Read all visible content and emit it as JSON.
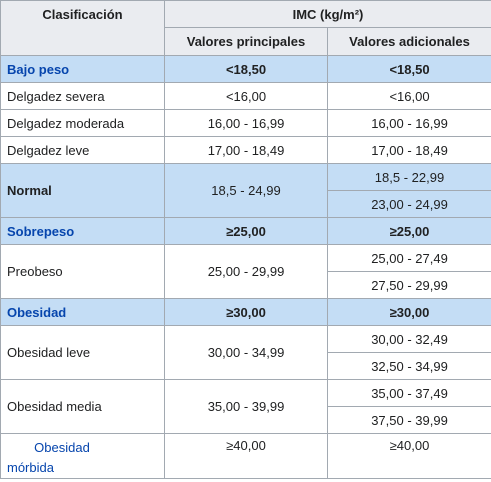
{
  "header": {
    "classification": "Clasificación",
    "bmi": "IMC (kg/m²)",
    "principal": "Valores principales",
    "additional": "Valores adicionales"
  },
  "rows": {
    "underweight": {
      "label": "Bajo peso",
      "principal": "<18,50",
      "additional": "<18,50"
    },
    "severe_thinness": {
      "label": "Delgadez severa",
      "principal": "<16,00",
      "additional": "<16,00"
    },
    "moderate_thinness": {
      "label": "Delgadez moderada",
      "principal": "16,00 - 16,99",
      "additional": "16,00 - 16,99"
    },
    "mild_thinness": {
      "label": "Delgadez leve",
      "principal": "17,00 - 18,49",
      "additional": "17,00 - 18,49"
    },
    "normal": {
      "label": "Normal",
      "principal": "18,5 - 24,99",
      "additional": [
        "18,5 - 22,99",
        "23,00 - 24,99"
      ]
    },
    "overweight": {
      "label": "Sobrepeso",
      "principal": "≥25,00",
      "additional": "≥25,00"
    },
    "preobese": {
      "label": "Preobeso",
      "principal": "25,00 - 29,99",
      "additional": [
        "25,00 - 27,49",
        "27,50 - 29,99"
      ]
    },
    "obesity": {
      "label": "Obesidad",
      "principal": "≥30,00",
      "additional": "≥30,00"
    },
    "obesity_mild": {
      "label": "Obesidad leve",
      "principal": "30,00 - 34,99",
      "additional": [
        "30,00 - 32,49",
        "32,50 - 34,99"
      ]
    },
    "obesity_medium": {
      "label": "Obesidad media",
      "principal": "35,00 - 39,99",
      "additional": [
        "35,00 - 37,49",
        "37,50 - 39,99"
      ]
    },
    "obesity_morbid": {
      "label_line1": "Obesidad",
      "label_line2": "mórbida",
      "principal": "≥40,00",
      "additional": "≥40,00"
    }
  },
  "colors": {
    "header_bg": "#eaecf0",
    "category_bg": "#c4ddf5",
    "link": "#0645ad",
    "border": "#a2a9b1"
  }
}
